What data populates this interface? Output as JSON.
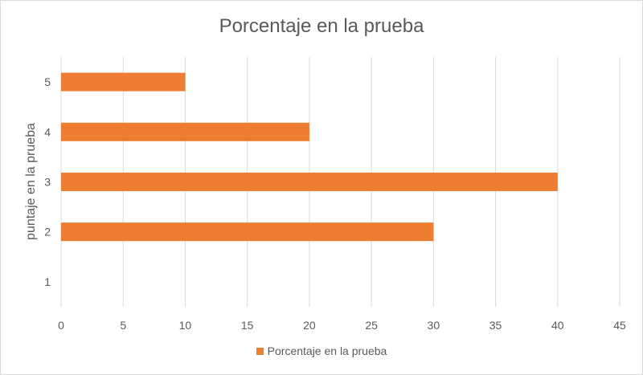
{
  "chart_data": {
    "type": "bar",
    "orientation": "horizontal",
    "title": "Porcentaje en la prueba",
    "ylabel": "puntaje en la prueba",
    "xlabel": "",
    "categories": [
      "1",
      "2",
      "3",
      "4",
      "5"
    ],
    "series": [
      {
        "name": "Porcentaje en la prueba",
        "values": [
          0,
          30,
          40,
          20,
          10
        ],
        "color": "#ED7D31"
      }
    ],
    "xlim": [
      0,
      45
    ],
    "x_ticks": [
      "0",
      "5",
      "10",
      "15",
      "20",
      "25",
      "30",
      "35",
      "40",
      "45"
    ],
    "grid": true,
    "legend_position": "bottom"
  }
}
